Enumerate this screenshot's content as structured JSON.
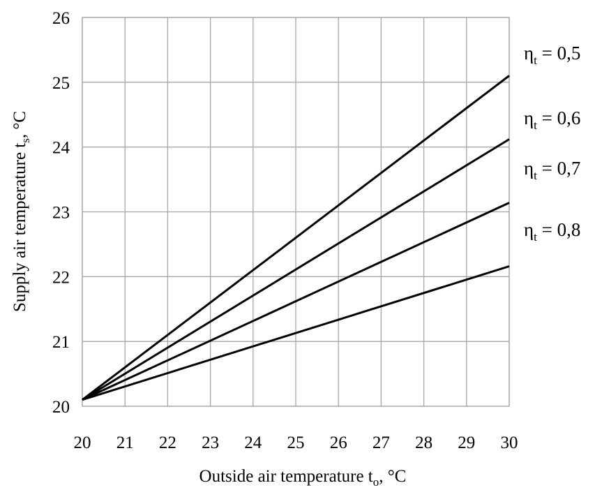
{
  "chart_data": {
    "type": "line",
    "xlabel": "Outside air temperature t",
    "xlabel_sub": "o",
    "xlabel_unit": ", °C",
    "ylabel": "Supply air temperature t",
    "ylabel_sub": "s",
    "ylabel_unit": ", °C",
    "xlim": [
      20,
      30
    ],
    "ylim": [
      20,
      26
    ],
    "x_ticks": [
      "20",
      "21",
      "22",
      "23",
      "24",
      "25",
      "26",
      "27",
      "28",
      "29",
      "30"
    ],
    "y_ticks": [
      "20",
      "21",
      "22",
      "23",
      "24",
      "25",
      "26"
    ],
    "grid": true,
    "legend_placement": "right",
    "x": [
      20,
      30
    ],
    "series": [
      {
        "symbol": "η",
        "sub": "t",
        "value": " = 0,5",
        "values": [
          20.1,
          25.1
        ]
      },
      {
        "symbol": "η",
        "sub": "t",
        "value": " = 0,6",
        "values": [
          20.1,
          24.12
        ]
      },
      {
        "symbol": "η",
        "sub": "t",
        "value": " = 0,7",
        "values": [
          20.1,
          23.14
        ]
      },
      {
        "symbol": "η",
        "sub": "t",
        "value": " = 0,8",
        "values": [
          20.1,
          22.16
        ]
      }
    ]
  }
}
